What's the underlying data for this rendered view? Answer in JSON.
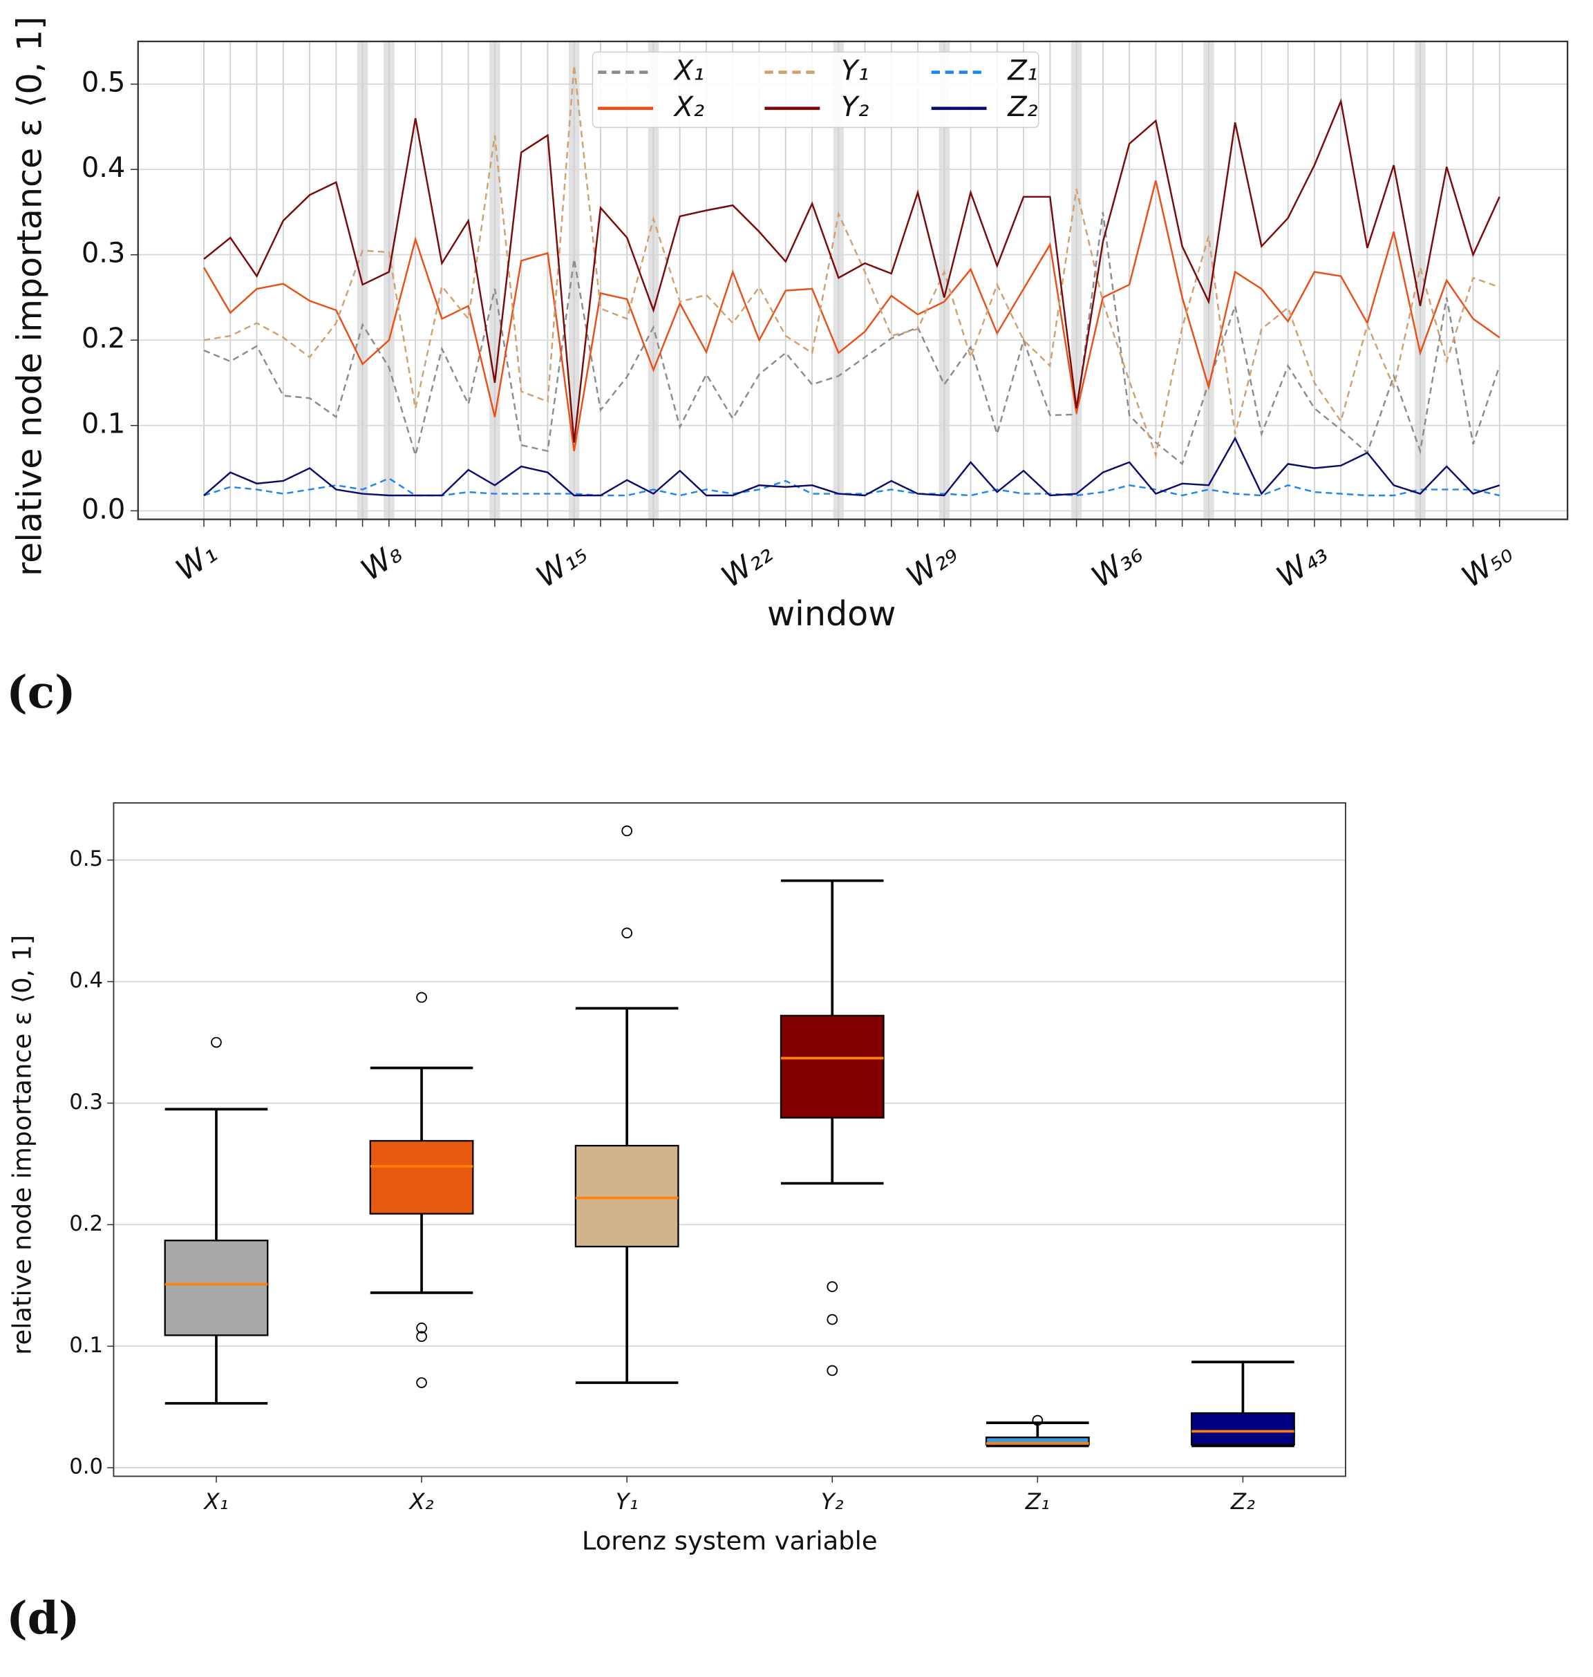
{
  "chart_data": [
    {
      "type": "line",
      "panel_label": "(c)",
      "xlabel": "window",
      "ylabel": "relative node importance ε ⟨0, 1]",
      "categories": [
        "W₁",
        null,
        null,
        null,
        null,
        null,
        null,
        "W₈",
        null,
        null,
        null,
        null,
        null,
        null,
        "W₁₅",
        null,
        null,
        null,
        null,
        null,
        null,
        "W₂₂",
        null,
        null,
        null,
        null,
        null,
        null,
        "W₂₉",
        null,
        null,
        null,
        null,
        null,
        null,
        "W₃₆",
        null,
        null,
        null,
        null,
        null,
        null,
        "W₄₃",
        null,
        null,
        null,
        null,
        null,
        null,
        "W₅₀"
      ],
      "ylim": [
        -0.01,
        0.55
      ],
      "yticks": [
        {
          "value": 0,
          "label": "0.0"
        },
        0.1,
        0.2,
        0.3,
        0.4,
        0.5
      ],
      "grid": true,
      "legend": "upper center",
      "shaded_windows": [
        7,
        8,
        12,
        15,
        18,
        25,
        29,
        34,
        39,
        47
      ],
      "series": [
        {
          "name": "X₁",
          "color": "#8c8c8c",
          "linestyle": "dashed",
          "values": [
            0.188,
            0.175,
            0.193,
            0.135,
            0.132,
            0.11,
            0.218,
            0.168,
            0.065,
            0.19,
            0.125,
            0.26,
            0.077,
            0.07,
            0.295,
            0.118,
            0.157,
            0.215,
            0.098,
            0.16,
            0.108,
            0.16,
            0.185,
            0.148,
            0.158,
            0.18,
            0.202,
            0.215,
            0.148,
            0.192,
            0.09,
            0.2,
            0.112,
            0.113,
            0.35,
            0.112,
            0.08,
            0.055,
            0.15,
            0.24,
            0.09,
            0.17,
            0.12,
            0.095,
            0.068,
            0.158,
            0.07,
            0.25,
            0.078,
            0.17
          ]
        },
        {
          "name": "X₂",
          "color": "#e8501a",
          "linestyle": "solid",
          "values": [
            0.285,
            0.232,
            0.26,
            0.266,
            0.246,
            0.235,
            0.172,
            0.2,
            0.318,
            0.225,
            0.24,
            0.11,
            0.293,
            0.302,
            0.07,
            0.255,
            0.248,
            0.165,
            0.243,
            0.186,
            0.28,
            0.2,
            0.258,
            0.26,
            0.185,
            0.21,
            0.252,
            0.23,
            0.245,
            0.283,
            0.208,
            0.26,
            0.312,
            0.115,
            0.25,
            0.265,
            0.387,
            0.25,
            0.145,
            0.28,
            0.26,
            0.222,
            0.28,
            0.275,
            0.22,
            0.327,
            0.185,
            0.27,
            0.225,
            0.203
          ]
        },
        {
          "name": "Y₁",
          "color": "#d2a06e",
          "linestyle": "dashed",
          "values": [
            0.2,
            0.205,
            0.22,
            0.203,
            0.18,
            0.22,
            0.305,
            0.303,
            0.12,
            0.263,
            0.225,
            0.44,
            0.14,
            0.128,
            0.522,
            0.237,
            0.225,
            0.342,
            0.245,
            0.253,
            0.22,
            0.262,
            0.205,
            0.185,
            0.348,
            0.28,
            0.205,
            0.213,
            0.28,
            0.18,
            0.265,
            0.2,
            0.17,
            0.377,
            0.245,
            0.152,
            0.065,
            0.215,
            0.322,
            0.09,
            0.213,
            0.238,
            0.15,
            0.105,
            0.218,
            0.145,
            0.285,
            0.175,
            0.273,
            0.262
          ]
        },
        {
          "name": "Y₂",
          "color": "#7a0a0a",
          "linestyle": "solid",
          "values": [
            0.295,
            0.32,
            0.275,
            0.34,
            0.37,
            0.385,
            0.265,
            0.28,
            0.46,
            0.29,
            0.34,
            0.15,
            0.42,
            0.44,
            0.08,
            0.355,
            0.32,
            0.235,
            0.345,
            0.352,
            0.358,
            0.327,
            0.292,
            0.36,
            0.273,
            0.29,
            0.278,
            0.373,
            0.25,
            0.373,
            0.287,
            0.368,
            0.368,
            0.12,
            0.315,
            0.43,
            0.457,
            0.31,
            0.245,
            0.455,
            0.31,
            0.343,
            0.405,
            0.48,
            0.308,
            0.405,
            0.24,
            0.403,
            0.3,
            0.368
          ]
        },
        {
          "name": "Z₁",
          "color": "#1f86f0",
          "linestyle": "dashed",
          "values": [
            0.018,
            0.028,
            0.025,
            0.02,
            0.025,
            0.03,
            0.025,
            0.038,
            0.018,
            0.018,
            0.022,
            0.02,
            0.02,
            0.02,
            0.02,
            0.018,
            0.018,
            0.025,
            0.018,
            0.025,
            0.02,
            0.025,
            0.035,
            0.02,
            0.02,
            0.02,
            0.025,
            0.02,
            0.02,
            0.018,
            0.025,
            0.02,
            0.02,
            0.018,
            0.022,
            0.03,
            0.025,
            0.018,
            0.025,
            0.02,
            0.018,
            0.03,
            0.022,
            0.02,
            0.018,
            0.018,
            0.025,
            0.025,
            0.025,
            0.018
          ]
        },
        {
          "name": "Z₂",
          "color": "#0c0c6e",
          "linestyle": "solid",
          "values": [
            0.018,
            0.045,
            0.032,
            0.035,
            0.05,
            0.025,
            0.02,
            0.018,
            0.018,
            0.018,
            0.048,
            0.03,
            0.052,
            0.045,
            0.018,
            0.018,
            0.036,
            0.02,
            0.047,
            0.018,
            0.018,
            0.03,
            0.028,
            0.03,
            0.02,
            0.018,
            0.035,
            0.02,
            0.018,
            0.057,
            0.022,
            0.047,
            0.018,
            0.02,
            0.045,
            0.057,
            0.02,
            0.032,
            0.03,
            0.085,
            0.02,
            0.055,
            0.05,
            0.053,
            0.068,
            0.03,
            0.02,
            0.052,
            0.02,
            0.03
          ]
        }
      ]
    },
    {
      "type": "box",
      "panel_label": "(d)",
      "xlabel": "Lorenz system variable",
      "ylabel": "relative node importance ε ⟨0, 1]",
      "ylim": [
        -0.007,
        0.547
      ],
      "yticks": [
        {
          "value": 0,
          "label": "0.0"
        },
        0.1,
        0.2,
        0.3,
        0.4,
        0.5
      ],
      "grid": true,
      "median_color": "#ff7f0e",
      "categories": [
        "X₁",
        "X₂",
        "Y₁",
        "Y₂",
        "Z₁",
        "Z₂"
      ],
      "boxes": [
        {
          "color": "#a9a9a9",
          "whislo": 0.053,
          "q1": 0.109,
          "med": 0.151,
          "q3": 0.187,
          "whishi": 0.295,
          "fliers": [
            0.35
          ]
        },
        {
          "color": "#e65a0f",
          "whislo": 0.144,
          "q1": 0.209,
          "med": 0.248,
          "q3": 0.269,
          "whishi": 0.329,
          "fliers": [
            0.387,
            0.115,
            0.108,
            0.07
          ]
        },
        {
          "color": "#d2b48c",
          "whislo": 0.07,
          "q1": 0.182,
          "med": 0.222,
          "q3": 0.265,
          "whishi": 0.378,
          "fliers": [
            0.524,
            0.44
          ]
        },
        {
          "color": "#800000",
          "whislo": 0.234,
          "q1": 0.288,
          "med": 0.337,
          "q3": 0.372,
          "whishi": 0.483,
          "fliers": [
            0.149,
            0.122,
            0.08
          ]
        },
        {
          "color": "#3d9be3",
          "whislo": 0.018,
          "q1": 0.019,
          "med": 0.02,
          "q3": 0.025,
          "whishi": 0.037,
          "fliers": [
            0.039
          ]
        },
        {
          "color": "#000080",
          "whislo": 0.018,
          "q1": 0.019,
          "med": 0.03,
          "q3": 0.045,
          "whishi": 0.087,
          "fliers": []
        }
      ]
    }
  ]
}
